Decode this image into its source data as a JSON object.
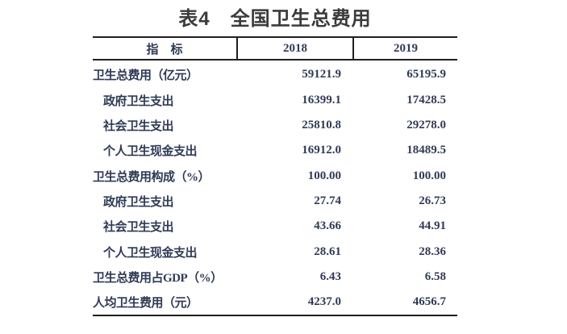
{
  "title": "表4　全国卫生总费用",
  "colors": {
    "text": "#2f3b55",
    "title_text": "#3b3b3b",
    "rule": "#1f1f1f",
    "background": "#ffffff"
  },
  "table": {
    "columns": [
      "指　标",
      "2018",
      "2019"
    ],
    "rows": [
      {
        "label": "卫生总费用（亿元）",
        "indent": 0,
        "v2018": "59121.9",
        "v2019": "65195.9"
      },
      {
        "label": "政府卫生支出",
        "indent": 1,
        "v2018": "16399.1",
        "v2019": "17428.5"
      },
      {
        "label": "社会卫生支出",
        "indent": 1,
        "v2018": "25810.8",
        "v2019": "29278.0"
      },
      {
        "label": "个人卫生现金支出",
        "indent": 1,
        "v2018": "16912.0",
        "v2019": "18489.5"
      },
      {
        "label": "卫生总费用构成（%）",
        "indent": 0,
        "v2018": "100.00",
        "v2019": "100.00"
      },
      {
        "label": "政府卫生支出",
        "indent": 1,
        "v2018": "27.74",
        "v2019": "26.73"
      },
      {
        "label": "社会卫生支出",
        "indent": 1,
        "v2018": "43.66",
        "v2019": "44.91"
      },
      {
        "label": "个人卫生现金支出",
        "indent": 1,
        "v2018": "28.61",
        "v2019": "28.36"
      },
      {
        "label": "卫生总费用占GDP（%）",
        "indent": 0,
        "v2018": "6.43",
        "v2019": "6.58"
      },
      {
        "label": "人均卫生费用（元）",
        "indent": 0,
        "v2018": "4237.0",
        "v2019": "4656.7"
      }
    ]
  }
}
